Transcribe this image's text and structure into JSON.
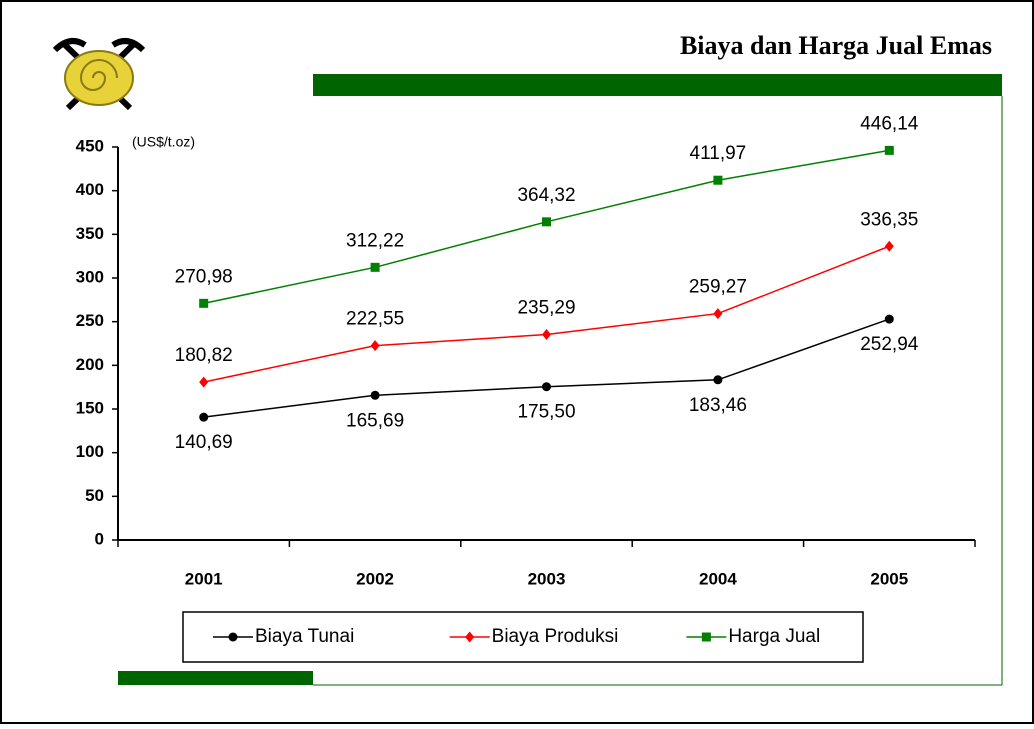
{
  "chart_data": {
    "type": "line",
    "title": "Biaya dan Harga Jual Emas",
    "y_label": "(US$/t.oz)",
    "categories": [
      "2001",
      "2002",
      "2003",
      "2004",
      "2005"
    ],
    "series": [
      {
        "name": "Biaya Tunai",
        "color": "#000000",
        "marker": "circle",
        "values": [
          140.69,
          165.69,
          175.5,
          183.46,
          252.94
        ],
        "value_labels": [
          "140,69",
          "165,69",
          "175,50",
          "183,46",
          "252,94"
        ]
      },
      {
        "name": "Biaya Produksi",
        "color": "#ff0000",
        "marker": "diamond",
        "values": [
          180.82,
          222.55,
          235.29,
          259.27,
          336.35
        ],
        "value_labels": [
          "180,82",
          "222,55",
          "235,29",
          "259,27",
          "336,35"
        ]
      },
      {
        "name": "Harga Jual",
        "color": "#008000",
        "marker": "square",
        "values": [
          270.98,
          312.22,
          364.32,
          411.97,
          446.14
        ],
        "value_labels": [
          "270,98",
          "312,22",
          "364,32",
          "411,97",
          "446,14"
        ]
      }
    ],
    "ylim": [
      0,
      450
    ],
    "yticks": [
      0,
      50,
      100,
      150,
      200,
      250,
      300,
      350,
      400,
      450
    ],
    "legend": "bottom"
  }
}
